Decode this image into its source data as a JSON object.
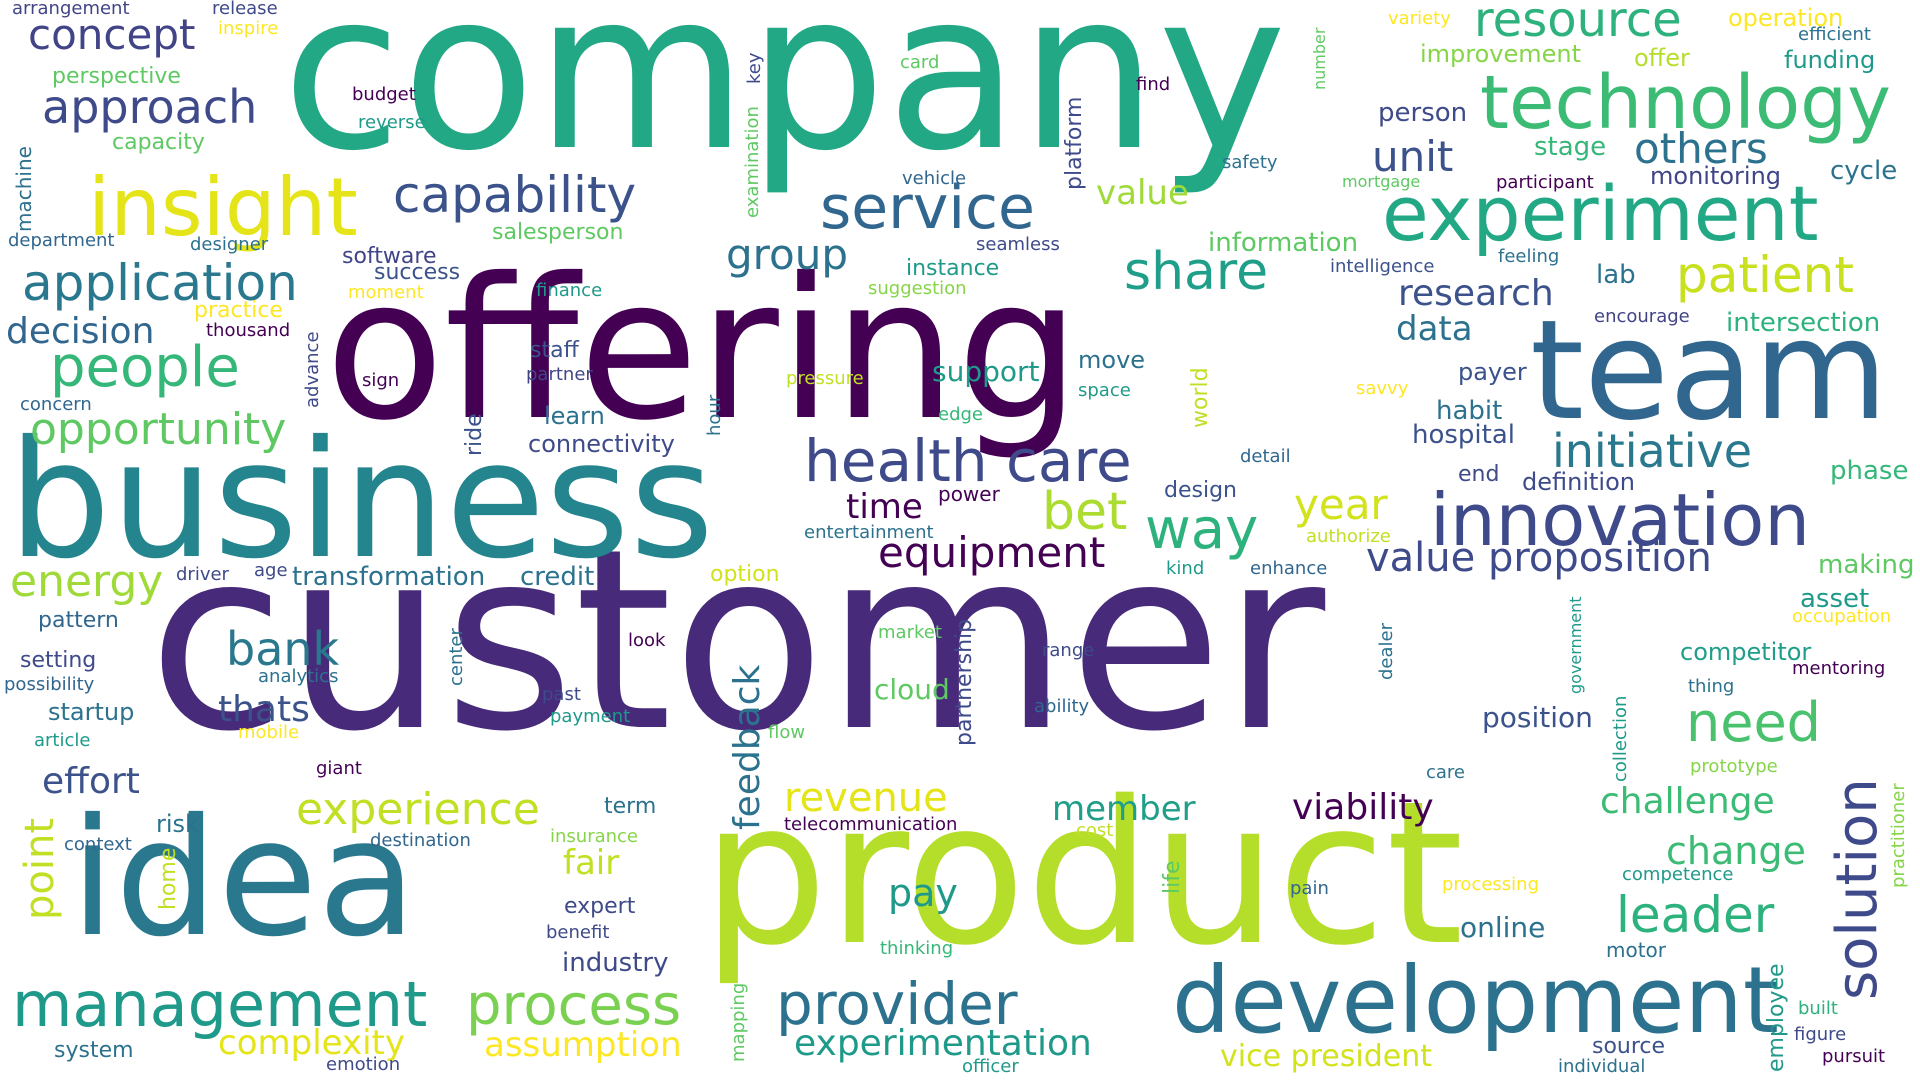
{
  "palette": {
    "dark_purple": "#440154",
    "indigo": "#472777",
    "blue": "#3b518b",
    "steel_blue": "#2c728e",
    "teal": "#21918c",
    "green_teal": "#28ae80",
    "green": "#5ec962",
    "lime": "#addc30",
    "yellow": "#fde725"
  },
  "words": [
    {
      "text": "company"
    },
    {
      "text": "customer"
    },
    {
      "text": "offering"
    },
    {
      "text": "business"
    },
    {
      "text": "idea"
    },
    {
      "text": "product"
    },
    {
      "text": "team"
    },
    {
      "text": "development"
    },
    {
      "text": "insight"
    },
    {
      "text": "experiment"
    },
    {
      "text": "technology"
    },
    {
      "text": "innovation"
    },
    {
      "text": "management"
    },
    {
      "text": "provider"
    },
    {
      "text": "application"
    },
    {
      "text": "people"
    },
    {
      "text": "health care"
    },
    {
      "text": "service"
    },
    {
      "text": "capability"
    },
    {
      "text": "solution"
    },
    {
      "text": "opportunity"
    },
    {
      "text": "process"
    },
    {
      "text": "approach"
    },
    {
      "text": "experience"
    },
    {
      "text": "resource"
    },
    {
      "text": "patient"
    },
    {
      "text": "initiative"
    },
    {
      "text": "share"
    },
    {
      "text": "way"
    },
    {
      "text": "concept"
    },
    {
      "text": "bet"
    },
    {
      "text": "need"
    },
    {
      "text": "leader"
    },
    {
      "text": "energy"
    },
    {
      "text": "experimentation"
    },
    {
      "text": "value proposition"
    },
    {
      "text": "bank"
    },
    {
      "text": "equipment"
    },
    {
      "text": "year"
    },
    {
      "text": "decision"
    },
    {
      "text": "others"
    },
    {
      "text": "group"
    },
    {
      "text": "revenue"
    },
    {
      "text": "challenge"
    },
    {
      "text": "change"
    },
    {
      "text": "research"
    },
    {
      "text": "effort"
    },
    {
      "text": "complexity"
    },
    {
      "text": "assumption"
    },
    {
      "text": "feedback"
    },
    {
      "text": "thats"
    },
    {
      "text": "unit"
    },
    {
      "text": "member"
    },
    {
      "text": "viability"
    },
    {
      "text": "data"
    },
    {
      "text": "point"
    },
    {
      "text": "pay"
    },
    {
      "text": "fair"
    },
    {
      "text": "time"
    },
    {
      "text": "value"
    },
    {
      "text": "vice president"
    },
    {
      "text": "information"
    },
    {
      "text": "improvement"
    },
    {
      "text": "monitoring"
    },
    {
      "text": "transformation"
    },
    {
      "text": "credit"
    },
    {
      "text": "hospital"
    },
    {
      "text": "definition"
    },
    {
      "text": "startup"
    },
    {
      "text": "industry"
    },
    {
      "text": "cloud"
    },
    {
      "text": "support"
    },
    {
      "text": "online"
    },
    {
      "text": "intersection"
    },
    {
      "text": "position"
    },
    {
      "text": "person"
    },
    {
      "text": "stage"
    },
    {
      "text": "cycle"
    },
    {
      "text": "phase"
    },
    {
      "text": "making"
    },
    {
      "text": "asset"
    },
    {
      "text": "competitor"
    },
    {
      "text": "funding"
    },
    {
      "text": "operation"
    },
    {
      "text": "offer"
    },
    {
      "text": "lab"
    },
    {
      "text": "habit"
    },
    {
      "text": "payer"
    },
    {
      "text": "move"
    },
    {
      "text": "learn"
    },
    {
      "text": "connectivity"
    },
    {
      "text": "staff"
    },
    {
      "text": "software"
    },
    {
      "text": "success"
    },
    {
      "text": "perspective"
    },
    {
      "text": "capacity"
    },
    {
      "text": "practice"
    },
    {
      "text": "salesperson"
    },
    {
      "text": "instance"
    },
    {
      "text": "design"
    },
    {
      "text": "end"
    },
    {
      "text": "risk"
    },
    {
      "text": "term"
    },
    {
      "text": "expert"
    },
    {
      "text": "pattern"
    },
    {
      "text": "setting"
    },
    {
      "text": "system"
    },
    {
      "text": "source"
    },
    {
      "text": "option"
    },
    {
      "text": "article"
    },
    {
      "text": "possibility"
    },
    {
      "text": "arrangement"
    },
    {
      "text": "release"
    },
    {
      "text": "inspire"
    },
    {
      "text": "budget"
    },
    {
      "text": "reverse"
    },
    {
      "text": "card"
    },
    {
      "text": "find"
    },
    {
      "text": "variety"
    },
    {
      "text": "efficient"
    },
    {
      "text": "safety"
    },
    {
      "text": "mortgage"
    },
    {
      "text": "participant"
    },
    {
      "text": "vehicle"
    },
    {
      "text": "seamless"
    },
    {
      "text": "designer"
    },
    {
      "text": "department"
    },
    {
      "text": "intelligence"
    },
    {
      "text": "feeling"
    },
    {
      "text": "suggestion"
    },
    {
      "text": "finance"
    },
    {
      "text": "moment"
    },
    {
      "text": "thousand"
    },
    {
      "text": "encourage"
    },
    {
      "text": "sign"
    },
    {
      "text": "partner"
    },
    {
      "text": "pressure"
    },
    {
      "text": "space"
    },
    {
      "text": "savvy"
    },
    {
      "text": "concern"
    },
    {
      "text": "edge"
    },
    {
      "text": "power"
    },
    {
      "text": "detail"
    },
    {
      "text": "entertainment"
    },
    {
      "text": "authorize"
    },
    {
      "text": "driver"
    },
    {
      "text": "age"
    },
    {
      "text": "kind"
    },
    {
      "text": "enhance"
    },
    {
      "text": "occupation"
    },
    {
      "text": "market"
    },
    {
      "text": "look"
    },
    {
      "text": "range"
    },
    {
      "text": "analytics"
    },
    {
      "text": "mentoring"
    },
    {
      "text": "thing"
    },
    {
      "text": "past"
    },
    {
      "text": "payment"
    },
    {
      "text": "ability"
    },
    {
      "text": "mobile"
    },
    {
      "text": "flow"
    },
    {
      "text": "giant"
    },
    {
      "text": "care"
    },
    {
      "text": "prototype"
    },
    {
      "text": "telecommunication"
    },
    {
      "text": "cost"
    },
    {
      "text": "context"
    },
    {
      "text": "destination"
    },
    {
      "text": "insurance"
    },
    {
      "text": "competence"
    },
    {
      "text": "processing"
    },
    {
      "text": "pain"
    },
    {
      "text": "motor"
    },
    {
      "text": "benefit"
    },
    {
      "text": "thinking"
    },
    {
      "text": "built"
    },
    {
      "text": "figure"
    },
    {
      "text": "emotion"
    },
    {
      "text": "officer"
    },
    {
      "text": "individual"
    },
    {
      "text": "pursuit"
    },
    {
      "text": "machine"
    },
    {
      "text": "examination"
    },
    {
      "text": "key"
    },
    {
      "text": "platform"
    },
    {
      "text": "number"
    },
    {
      "text": "advance"
    },
    {
      "text": "hour"
    },
    {
      "text": "ride"
    },
    {
      "text": "world"
    },
    {
      "text": "center"
    },
    {
      "text": "partnership"
    },
    {
      "text": "dealer"
    },
    {
      "text": "government"
    },
    {
      "text": "collection"
    },
    {
      "text": "practitioner"
    },
    {
      "text": "home"
    },
    {
      "text": "life"
    },
    {
      "text": "mapping"
    },
    {
      "text": "employee"
    }
  ]
}
